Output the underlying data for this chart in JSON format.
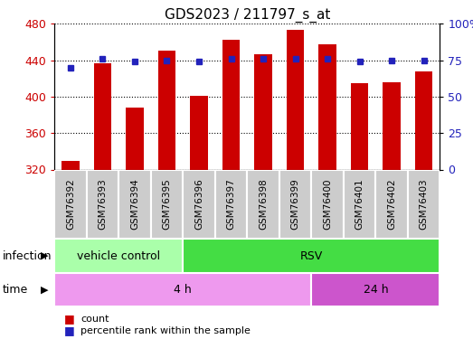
{
  "title": "GDS2023 / 211797_s_at",
  "samples": [
    "GSM76392",
    "GSM76393",
    "GSM76394",
    "GSM76395",
    "GSM76396",
    "GSM76397",
    "GSM76398",
    "GSM76399",
    "GSM76400",
    "GSM76401",
    "GSM76402",
    "GSM76403"
  ],
  "counts": [
    329,
    437,
    388,
    450,
    401,
    462,
    447,
    473,
    457,
    415,
    416,
    428
  ],
  "percentile_ranks": [
    70,
    76,
    74,
    75,
    74,
    76,
    76,
    76,
    76,
    74,
    75,
    75
  ],
  "ylim_left": [
    320,
    480
  ],
  "ylim_right": [
    0,
    100
  ],
  "yticks_left": [
    320,
    360,
    400,
    440,
    480
  ],
  "yticks_right": [
    0,
    25,
    50,
    75,
    100
  ],
  "bar_color": "#cc0000",
  "dot_color": "#2222bb",
  "infection_groups": [
    {
      "label": "vehicle control",
      "start": 0,
      "end": 4,
      "color": "#aaffaa"
    },
    {
      "label": "RSV",
      "start": 4,
      "end": 12,
      "color": "#44dd44"
    }
  ],
  "time_groups": [
    {
      "label": "4 h",
      "start": 0,
      "end": 8,
      "color": "#ee99ee"
    },
    {
      "label": "24 h",
      "start": 8,
      "end": 12,
      "color": "#cc55cc"
    }
  ],
  "infection_label": "infection",
  "time_label": "time",
  "legend_count_label": "count",
  "legend_percentile_label": "percentile rank within the sample",
  "bg_color": "#ffffff",
  "tick_label_color_left": "#cc0000",
  "tick_label_color_right": "#2222bb",
  "bar_width": 0.55,
  "cell_bg_color": "#cccccc",
  "cell_line_color": "#ffffff"
}
